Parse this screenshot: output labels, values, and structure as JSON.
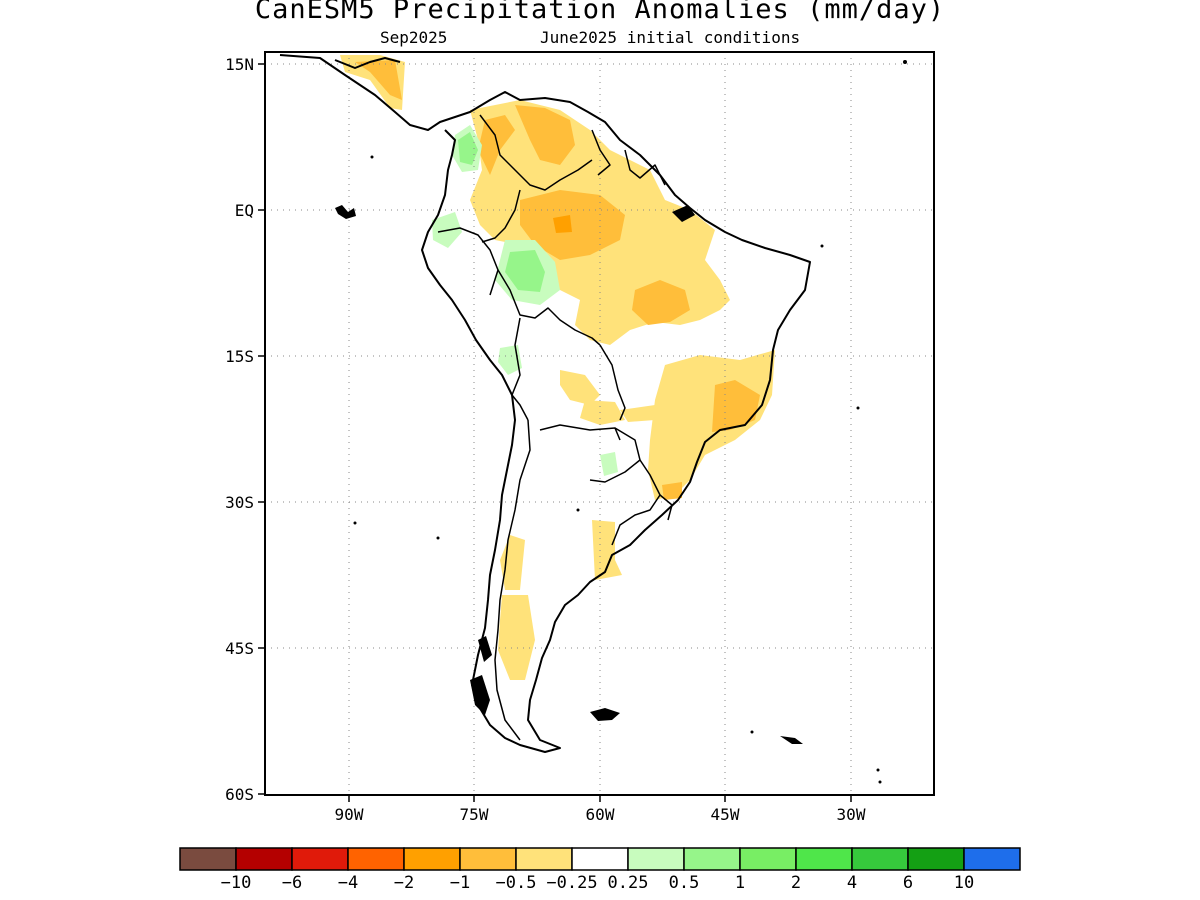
{
  "title": "CanESM5 Precipitation Anomalies (mm/day)",
  "subtitle_left": "Sep2025",
  "subtitle_right": "June2025 initial conditions",
  "lat_labels": [
    "15N",
    "EQ",
    "15S",
    "30S",
    "45S",
    "60S"
  ],
  "lon_labels": [
    "90W",
    "75W",
    "60W",
    "45W",
    "30W"
  ],
  "colorbar": {
    "labels": [
      "−10",
      "−6",
      "−4",
      "−2",
      "−1",
      "−0.5",
      "−0.25",
      "0.25",
      "0.5",
      "1",
      "2",
      "4",
      "6",
      "10"
    ],
    "colors": [
      "#7a4b3f",
      "#b40000",
      "#e01a0a",
      "#ff6300",
      "#ffa000",
      "#ffbe3a",
      "#ffe27a",
      "#ffffff",
      "#c8fcbe",
      "#96f58a",
      "#78ee64",
      "#4fe64a",
      "#36c93c",
      "#14a014",
      "#1e6eeb"
    ]
  },
  "colors": {
    "anom_neg_025": "#ffe27a",
    "anom_neg_05": "#ffbe3a",
    "anom_neg_1": "#ffa000",
    "anom_pos_025": "#c8fcbe",
    "anom_pos_05": "#96f58a"
  }
}
